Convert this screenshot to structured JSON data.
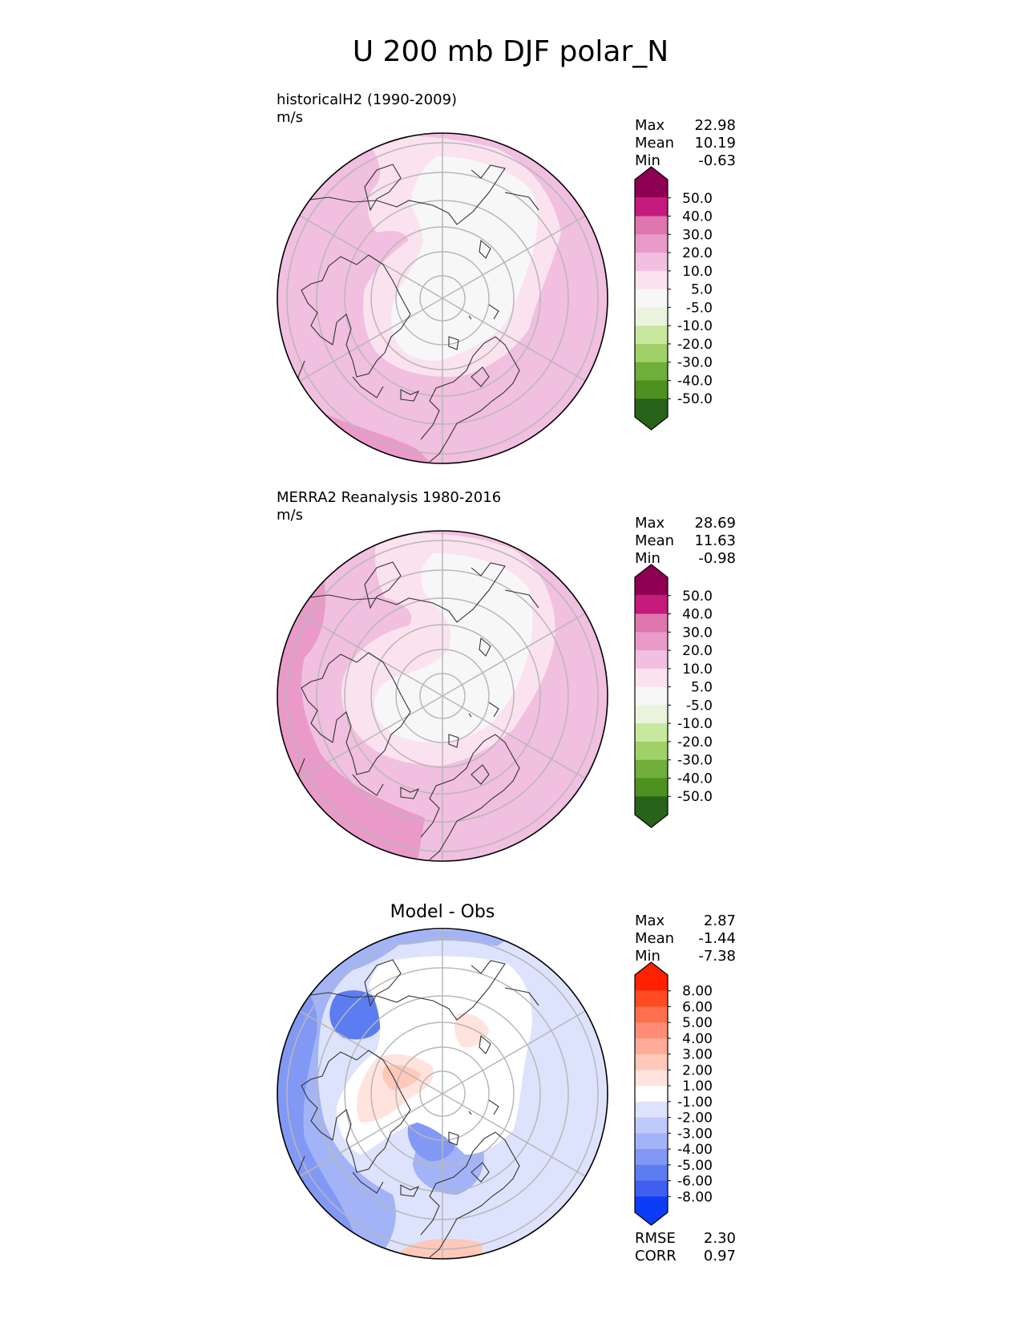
{
  "title": "U 200 mb DJF polar_N",
  "panels": [
    {
      "label": "historicalH2 (1990-2009)",
      "units": "m/s",
      "stats": [
        [
          "Max",
          "22.98"
        ],
        [
          "Mean",
          "10.19"
        ],
        [
          "Min",
          "-0.63"
        ]
      ],
      "colorbar": {
        "ticks": [
          "50.0",
          "40.0",
          "30.0",
          "20.0",
          "10.0",
          "5.0",
          "-5.0",
          "-10.0",
          "-20.0",
          "-30.0",
          "-40.0",
          "-50.0"
        ],
        "colors": [
          "#8e0152",
          "#c51b7d",
          "#de77ae",
          "#e99ac9",
          "#f1bfdf",
          "#fbe2ef",
          "#f7f7f7",
          "#eaf4dc",
          "#c8e8a0",
          "#a0d068",
          "#6fae3a",
          "#4d9221",
          "#276419"
        ]
      }
    },
    {
      "label": "MERRA2 Reanalysis 1980-2016",
      "units": "m/s",
      "stats": [
        [
          "Max",
          "28.69"
        ],
        [
          "Mean",
          "11.63"
        ],
        [
          "Min",
          "-0.98"
        ]
      ],
      "colorbar": {
        "ticks": [
          "50.0",
          "40.0",
          "30.0",
          "20.0",
          "10.0",
          "5.0",
          "-5.0",
          "-10.0",
          "-20.0",
          "-30.0",
          "-40.0",
          "-50.0"
        ],
        "colors": [
          "#8e0152",
          "#c51b7d",
          "#de77ae",
          "#e99ac9",
          "#f1bfdf",
          "#fbe2ef",
          "#f7f7f7",
          "#eaf4dc",
          "#c8e8a0",
          "#a0d068",
          "#6fae3a",
          "#4d9221",
          "#276419"
        ]
      }
    },
    {
      "title": "Model - Obs",
      "stats": [
        [
          "Max",
          "2.87"
        ],
        [
          "Mean",
          "-1.44"
        ],
        [
          "Min",
          "-7.38"
        ]
      ],
      "metrics": [
        [
          "RMSE",
          "2.30"
        ],
        [
          "CORR",
          "0.97"
        ]
      ],
      "colorbar": {
        "ticks": [
          "8.00",
          "6.00",
          "5.00",
          "4.00",
          "3.00",
          "2.00",
          "1.00",
          "-1.00",
          "-2.00",
          "-3.00",
          "-4.00",
          "-5.00",
          "-6.00",
          "-8.00"
        ],
        "colors": [
          "#ff2000",
          "#ff4a22",
          "#ff6f4e",
          "#ff8c74",
          "#ffab98",
          "#ffc8b8",
          "#ffe3dc",
          "#ffffff",
          "#dde3fd",
          "#c0cbfb",
          "#a3b3f8",
          "#8199f5",
          "#5c7cf2",
          "#3f5ff0",
          "#0b3df6"
        ]
      }
    }
  ],
  "chart_data": {
    "type": "heatmap",
    "projection": "north polar stereographic",
    "title": "U 200 mb DJF polar_N",
    "grid": true,
    "colorbar_placement": "right",
    "panels": [
      {
        "name": "historicalH2 (1990-2009)",
        "units": "m/s",
        "max": 22.98,
        "mean": 10.19,
        "min": -0.63,
        "levels": [
          -50,
          -40,
          -30,
          -20,
          -10,
          -5,
          5,
          10,
          20,
          30,
          40,
          50
        ],
        "extend": "both"
      },
      {
        "name": "MERRA2 Reanalysis 1980-2016",
        "units": "m/s",
        "max": 28.69,
        "mean": 11.63,
        "min": -0.98,
        "levels": [
          -50,
          -40,
          -30,
          -20,
          -10,
          -5,
          5,
          10,
          20,
          30,
          40,
          50
        ],
        "extend": "both"
      },
      {
        "name": "Model - Obs",
        "max": 2.87,
        "mean": -1.44,
        "min": -7.38,
        "rmse": 2.3,
        "corr": 0.97,
        "levels": [
          -8,
          -6,
          -5,
          -4,
          -3,
          -2,
          -1,
          1,
          2,
          3,
          4,
          5,
          6,
          8
        ],
        "extend": "both"
      }
    ]
  }
}
